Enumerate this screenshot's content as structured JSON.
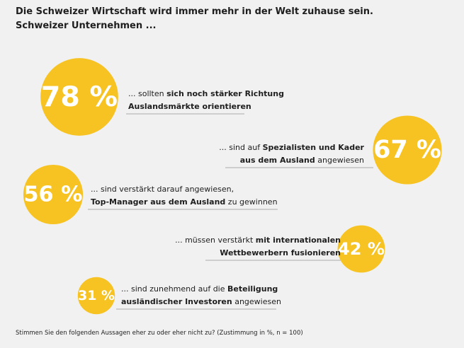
{
  "chart_data": {
    "type": "bubble",
    "title": "Die Schweizer Wirtschaft wird immer mehr in der Welt zuhause sein.",
    "subtitle": "Schweizer Unternehmen ...",
    "color": "#f6c323",
    "values": [
      78,
      67,
      56,
      42,
      31
    ],
    "value_labels": [
      "78 %",
      "67 %",
      "56 %",
      "42 %",
      "31 %"
    ],
    "statements": [
      [
        [
          {
            "text": "... sollten ",
            "bold": false
          },
          {
            "text": "sich noch stärker Richtung",
            "bold": true
          }
        ],
        [
          {
            "text": "Auslandsmärkte orientieren",
            "bold": true
          }
        ]
      ],
      [
        [
          {
            "text": "... sind auf ",
            "bold": false
          },
          {
            "text": "Spezialisten und Kader",
            "bold": true
          }
        ],
        [
          {
            "text": "aus dem Ausland",
            "bold": true
          },
          {
            "text": " angewiesen",
            "bold": false
          }
        ]
      ],
      [
        [
          {
            "text": "... sind verstärkt darauf angewiesen,",
            "bold": false
          }
        ],
        [
          {
            "text": "Top-Manager aus dem Ausland",
            "bold": true
          },
          {
            "text": " zu gewinnen",
            "bold": false
          }
        ]
      ],
      [
        [
          {
            "text": "... müssen verstärkt ",
            "bold": false
          },
          {
            "text": "mit internationalen",
            "bold": true
          }
        ],
        [
          {
            "text": "Wettbewerbern fusionieren",
            "bold": true
          }
        ]
      ],
      [
        [
          {
            "text": "... sind zunehmend auf die ",
            "bold": false
          },
          {
            "text": "Beteiligung",
            "bold": true
          }
        ],
        [
          {
            "text": "ausländischer Investoren",
            "bold": true
          },
          {
            "text": " angewiesen",
            "bold": false
          }
        ]
      ]
    ],
    "note": "Stimmen Sie den folgenden Aussagen eher zu oder eher nicht zu? (Zustimmung in %, n = 100)"
  }
}
